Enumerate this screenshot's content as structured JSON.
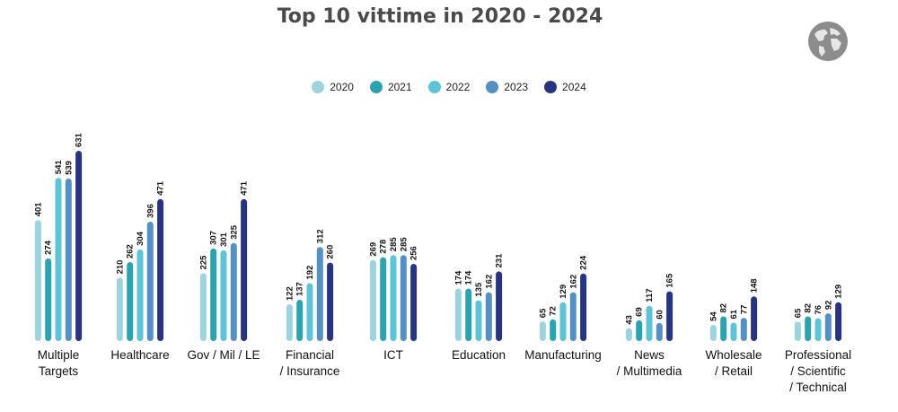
{
  "chart_data": {
    "type": "bar",
    "title": "Top 10 vittime in 2020 - 2024",
    "categories": [
      [
        "Multiple",
        "Targets"
      ],
      [
        "Healthcare"
      ],
      [
        "Gov / Mil / LE"
      ],
      [
        "Financial",
        "/ Insurance"
      ],
      [
        "ICT"
      ],
      [
        "Education"
      ],
      [
        "Manufacturing"
      ],
      [
        "News",
        "/ Multimedia"
      ],
      [
        "Wholesale",
        "/ Retail"
      ],
      [
        "Professional",
        "/ Scientific",
        "/ Technical"
      ]
    ],
    "series": [
      {
        "name": "2020",
        "color": "#9ed3de",
        "values": [
          401,
          210,
          225,
          122,
          269,
          174,
          65,
          43,
          54,
          65
        ]
      },
      {
        "name": "2021",
        "color": "#2ea3b0",
        "values": [
          274,
          262,
          307,
          137,
          278,
          174,
          72,
          69,
          82,
          82
        ]
      },
      {
        "name": "2022",
        "color": "#5ec3d5",
        "values": [
          541,
          304,
          301,
          192,
          285,
          135,
          129,
          117,
          61,
          76
        ]
      },
      {
        "name": "2023",
        "color": "#5690c2",
        "values": [
          539,
          396,
          325,
          312,
          285,
          162,
          162,
          60,
          77,
          92
        ]
      },
      {
        "name": "2024",
        "color": "#28347e",
        "values": [
          631,
          471,
          471,
          260,
          256,
          231,
          224,
          165,
          148,
          129
        ]
      }
    ],
    "ylim": [
      0,
      631
    ],
    "legend": "top-center",
    "grid": false
  },
  "icons": {
    "globe": "globe-icon"
  }
}
